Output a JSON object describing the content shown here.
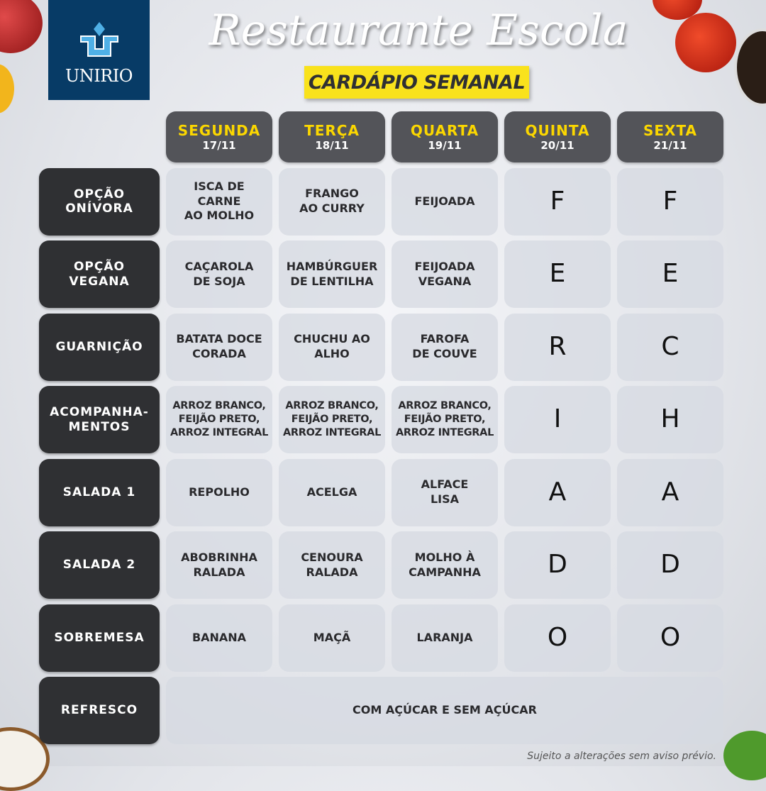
{
  "logo": {
    "text": "UNIRIO",
    "color": "#073b66"
  },
  "header": {
    "title": "Restaurante Escola",
    "subtitle": "CARDÁPIO SEMANAL",
    "accent": "#f9e21c"
  },
  "days": [
    {
      "name": "SEGUNDA",
      "date": "17/11"
    },
    {
      "name": "TERÇA",
      "date": "18/11"
    },
    {
      "name": "QUARTA",
      "date": "19/11"
    },
    {
      "name": "QUINTA",
      "date": "20/11"
    },
    {
      "name": "SEXTA",
      "date": "21/11"
    }
  ],
  "rows": [
    {
      "label": "OPÇÃO\nONÍVORA",
      "cells": [
        "ISCA DE\nCARNE\nAO MOLHO",
        "FRANGO\nAO CURRY",
        "FEIJOADA",
        "F",
        "F"
      ]
    },
    {
      "label": "OPÇÃO\nVEGANA",
      "cells": [
        "CAÇAROLA\nDE SOJA",
        "HAMBÚRGUER\nDE LENTILHA",
        "FEIJOADA\nVEGANA",
        "E",
        "E"
      ]
    },
    {
      "label": "GUARNIÇÃO",
      "cells": [
        "BATATA DOCE\nCORADA",
        "CHUCHU AO\nALHO",
        "FAROFA\nDE COUVE",
        "R",
        "C"
      ]
    },
    {
      "label": "ACOMPANHA-\nMENTOS",
      "cells": [
        "ARROZ BRANCO,\nFEIJÃO PRETO,\nARROZ INTEGRAL",
        "ARROZ BRANCO,\nFEIJÃO PRETO,\nARROZ INTEGRAL",
        "ARROZ BRANCO,\nFEIJÃO PRETO,\nARROZ INTEGRAL",
        "I",
        "H"
      ]
    },
    {
      "label": "SALADA 1",
      "cells": [
        "REPOLHO",
        "ACELGA",
        "ALFACE\nLISA",
        "A",
        "A"
      ]
    },
    {
      "label": "SALADA 2",
      "cells": [
        "ABOBRINHA\nRALADA",
        "CENOURA\nRALADA",
        "MOLHO À\nCAMPANHA",
        "D",
        "D"
      ]
    },
    {
      "label": "SOBREMESA",
      "cells": [
        "BANANA",
        "MAÇÃ",
        "LARANJA",
        "O",
        "O"
      ]
    }
  ],
  "refresco": {
    "label": "REFRESCO",
    "value": "COM AÇÚCAR E SEM AÇÚCAR"
  },
  "footer": {
    "note": "Sujeito a alterações sem aviso prévio."
  }
}
